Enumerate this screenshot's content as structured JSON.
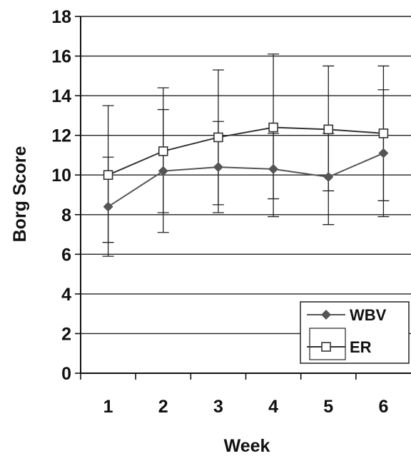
{
  "chart_data": {
    "type": "line",
    "title": "",
    "xlabel": "Week",
    "ylabel": "Borg Score",
    "x": [
      1,
      2,
      3,
      4,
      5,
      6
    ],
    "categories": [
      "1",
      "2",
      "3",
      "4",
      "5",
      "6"
    ],
    "ylim": [
      0,
      18
    ],
    "yticks": [
      0,
      2,
      4,
      6,
      8,
      10,
      12,
      14,
      16,
      18
    ],
    "ytick_labels": [
      "0",
      "2",
      "4",
      "6",
      "8",
      "10",
      "12",
      "14",
      "16",
      "18"
    ],
    "grid": "horizontal",
    "legend_position": "bottom-right",
    "series": [
      {
        "name": "WBV",
        "marker": "diamond-filled",
        "color": "#555555",
        "values": [
          8.4,
          10.2,
          10.4,
          10.3,
          9.9,
          11.1
        ],
        "error_low": [
          6.6,
          8.1,
          8.5,
          8.8,
          9.2,
          8.7
        ],
        "error_high": [
          10.9,
          13.3,
          12.7,
          12.1,
          12.1,
          14.3
        ]
      },
      {
        "name": "ER",
        "marker": "square-open",
        "color": "#333333",
        "values": [
          10.0,
          11.2,
          11.9,
          12.4,
          12.3,
          12.1
        ],
        "error_low": [
          5.9,
          7.1,
          8.1,
          7.9,
          7.5,
          7.9
        ],
        "error_high": [
          13.5,
          14.4,
          15.3,
          16.1,
          15.5,
          15.5
        ]
      }
    ]
  }
}
